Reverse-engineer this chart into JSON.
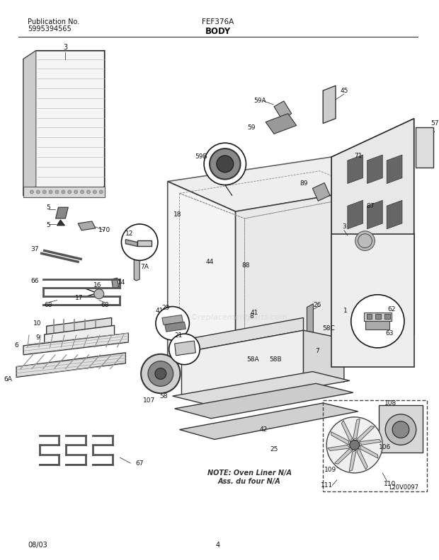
{
  "title_left_line1": "Publication No.",
  "title_left_line2": "5995394565",
  "title_center_top": "FEF376A",
  "title_center_bottom": "BODY",
  "footer_left": "08/03",
  "footer_center": "4",
  "watermark": "©replacementparts.com",
  "image_label": "L20V0097",
  "note_line1": "NOTE: Oven Liner N/A",
  "note_line2": "Ass. du four N/A",
  "bg_color": "#ffffff",
  "fig_width": 6.2,
  "fig_height": 7.92,
  "dpi": 100
}
